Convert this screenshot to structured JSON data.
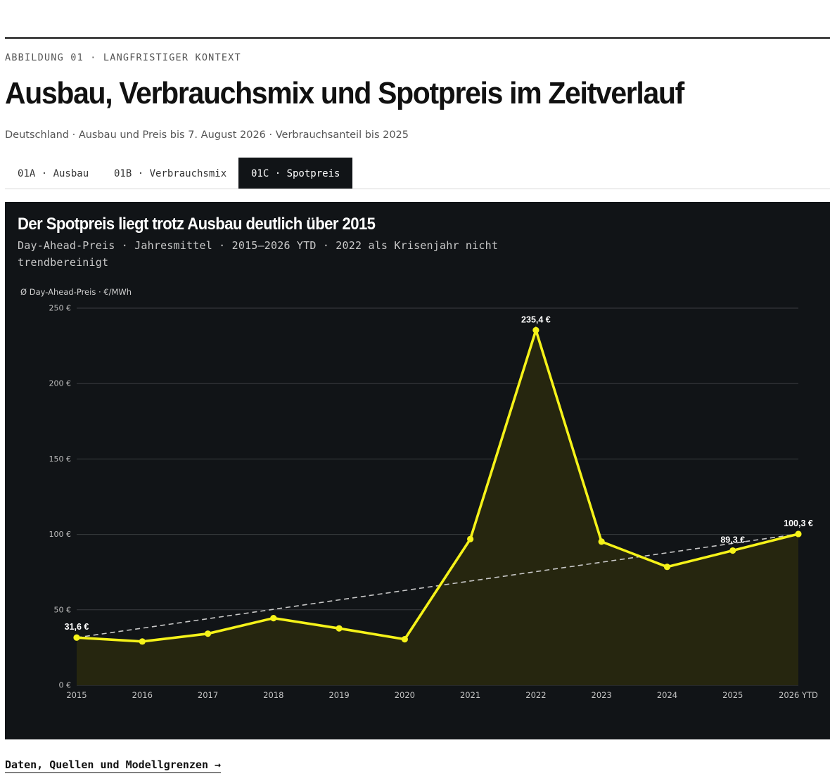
{
  "header": {
    "kicker": "ABBILDUNG 01 · LANGFRISTIGER KONTEXT",
    "title": "Ausbau, Verbrauchsmix und Spotpreis im Zeitverlauf",
    "subtitle": "Deutschland · Ausbau und Preis bis 7. August 2026 · Verbrauchsanteil bis 2025"
  },
  "tabs": [
    {
      "label": "01A · Ausbau",
      "active": false
    },
    {
      "label": "01B · Verbrauchsmix",
      "active": false
    },
    {
      "label": "01C · Spotpreis",
      "active": true
    }
  ],
  "panel": {
    "title": "Der Spotpreis liegt trotz Ausbau deutlich über 2015",
    "subtitle": "Day-Ahead-Preis · Jahresmittel · 2015–2026 YTD · 2022 als Krisenjahr nicht trendbereinigt"
  },
  "colors": {
    "panel_bg": "#111417",
    "line": "#f5f219",
    "area": "#26260f",
    "grid": "#3a3d40",
    "trend": "#c8c8c8"
  },
  "chart_data": {
    "type": "line",
    "ylabel": "Ø Day-Ahead-Preis · €/MWh",
    "categories": [
      "2015",
      "2016",
      "2017",
      "2018",
      "2019",
      "2020",
      "2021",
      "2022",
      "2023",
      "2024",
      "2025",
      "2026 YTD"
    ],
    "series": [
      {
        "values": [
          31.6,
          29.0,
          34.2,
          44.5,
          37.7,
          30.5,
          96.9,
          235.4,
          95.2,
          78.5,
          89.3,
          100.3
        ]
      }
    ],
    "trend_line": {
      "from": 31.6,
      "to": 100.3,
      "style": "dashed"
    },
    "ylim": [
      0,
      250
    ],
    "yticks": [
      0,
      50,
      100,
      150,
      200,
      250
    ],
    "ytick_labels": [
      "0 €",
      "50 €",
      "100 €",
      "150 €",
      "200 €",
      "250 €"
    ],
    "point_labels": [
      {
        "index": 0,
        "text": "31,6 €"
      },
      {
        "index": 7,
        "text": "235,4 €"
      },
      {
        "index": 10,
        "text": "89,3 €"
      },
      {
        "index": 11,
        "text": "100,3 €"
      }
    ],
    "area_fill": true,
    "grid": true
  },
  "footer": {
    "link_label": "Daten, Quellen und Modellgrenzen →"
  }
}
